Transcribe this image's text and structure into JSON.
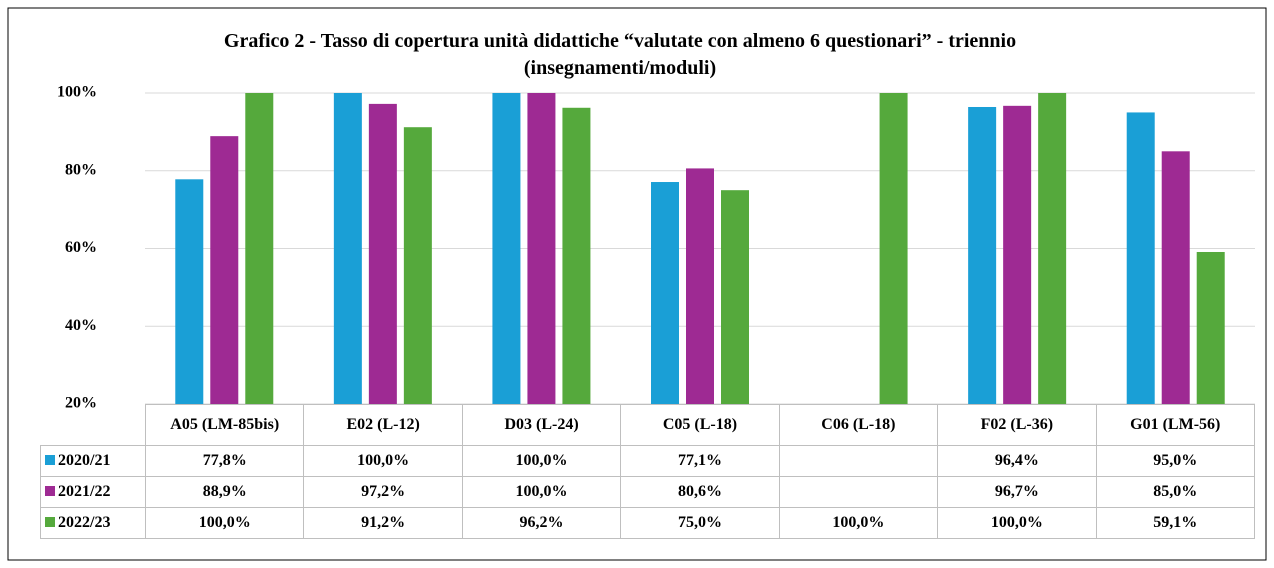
{
  "chart_data": {
    "type": "bar",
    "title": "Grafico 2 - Tasso di copertura unità didattiche “valutate con almeno 6 questionari” - triennio (insegnamenti/moduli)",
    "categories": [
      "A05 (LM-85bis)",
      "E02 (L-12)",
      "D03 (L-24)",
      "C05 (L-18)",
      "C06 (L-18)",
      "F02 (L-36)",
      "G01 (LM-56)"
    ],
    "series": [
      {
        "name": "2020/21",
        "color": "#1a9fd6",
        "values": [
          77.8,
          100,
          100,
          77.1,
          null,
          96.4,
          95.0
        ],
        "value_labels": [
          "77,8%",
          "100,0%",
          "100,0%",
          "77,1%",
          null,
          "96,4%",
          "95,0%"
        ]
      },
      {
        "name": "2021/22",
        "color": "#9e2a93",
        "values": [
          88.9,
          97.2,
          100,
          80.6,
          null,
          96.7,
          85.0
        ],
        "value_labels": [
          "88,9%",
          "97,2%",
          "100,0%",
          "80,6%",
          null,
          "96,7%",
          "85,0%"
        ]
      },
      {
        "name": "2022/23",
        "color": "#55a93c",
        "values": [
          100,
          91.2,
          96.2,
          75.0,
          100,
          100,
          59.1
        ],
        "value_labels": [
          "100,0%",
          "91,2%",
          "96,2%",
          "75,0%",
          "100,0%",
          "100,0%",
          "59,1%"
        ]
      }
    ],
    "ylim": [
      20,
      100
    ],
    "yticks": [
      {
        "value": 20,
        "label": "20%"
      },
      {
        "value": 40,
        "label": "40%"
      },
      {
        "value": 60,
        "label": "60%"
      },
      {
        "value": 80,
        "label": "80%"
      },
      {
        "value": 100,
        "label": "100%"
      }
    ],
    "grid": true
  }
}
